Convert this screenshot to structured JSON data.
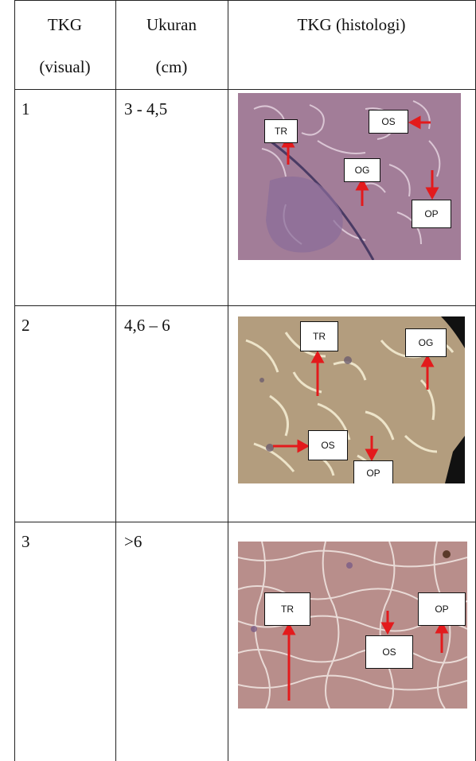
{
  "header": {
    "col1_line1": "TKG",
    "col1_line2": "(visual)",
    "col2_line1": "Ukuran",
    "col2_line2": "(cm)",
    "col3": "TKG (histologi)"
  },
  "rows": [
    {
      "tkg_visual": "1",
      "ukuran": "3 - 4,5",
      "labels": {
        "tr": "TR",
        "os": "OS",
        "og": "OG",
        "op": "OP"
      }
    },
    {
      "tkg_visual": "2",
      "ukuran": "4,6 – 6",
      "labels": {
        "tr": "TR",
        "og": "OG",
        "os": "OS",
        "op": "OP"
      }
    },
    {
      "tkg_visual": "3",
      "ukuran": ">6",
      "labels": {
        "tr": "TR",
        "op": "OP",
        "os": "OS"
      }
    }
  ],
  "colors": {
    "arrow": "#e31a1c",
    "tissue_1": "#a27d98",
    "tissue_2": "#b39d7e",
    "tissue_3": "#b88e8b"
  }
}
